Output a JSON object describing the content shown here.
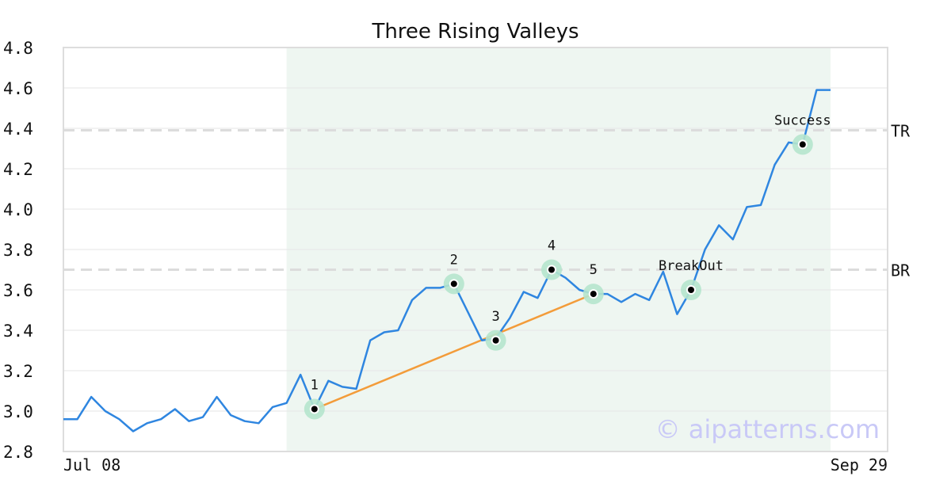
{
  "chart_data": {
    "type": "line",
    "title": "Three Rising Valleys",
    "xlabel": "",
    "ylabel": "",
    "ylim": [
      2.8,
      4.8
    ],
    "yticks": [
      "2.8",
      "3.0",
      "3.2",
      "3.4",
      "3.6",
      "3.8",
      "4.0",
      "4.2",
      "4.4",
      "4.6",
      "4.8"
    ],
    "xtick_labels": [
      "Jul 08",
      "Sep 29"
    ],
    "grid": true,
    "series": [
      {
        "values": [
          2.96,
          2.96,
          3.07,
          3.0,
          2.96,
          2.9,
          2.94,
          2.96,
          3.01,
          2.95,
          2.97,
          3.07,
          2.98,
          2.95,
          2.94,
          3.02,
          3.04,
          3.18,
          3.01,
          3.15,
          3.12,
          3.11,
          3.35,
          3.39,
          3.4,
          3.55,
          3.61,
          3.61,
          3.63,
          3.49,
          3.35,
          3.36,
          3.46,
          3.59,
          3.56,
          3.7,
          3.66,
          3.6,
          3.58,
          3.58,
          3.54,
          3.58,
          3.55,
          3.69,
          3.48,
          3.6,
          3.8,
          3.92,
          3.85,
          4.01,
          4.02,
          4.22,
          4.33,
          4.32,
          4.59,
          4.59
        ],
        "color": "#2f86e0"
      }
    ],
    "shaded_region": {
      "x_start": 16,
      "x_end": 55,
      "color": "#eef6f1"
    },
    "trendline": {
      "points": [
        [
          18,
          3.01
        ],
        [
          38,
          3.58
        ]
      ],
      "color": "#f39c3a"
    },
    "horizontal_lines": [
      {
        "label": "TR",
        "y": 4.39
      },
      {
        "label": "BR",
        "y": 3.7
      }
    ],
    "points": [
      {
        "label": "1",
        "x": 18,
        "y": 3.01
      },
      {
        "label": "2",
        "x": 28,
        "y": 3.63
      },
      {
        "label": "3",
        "x": 31,
        "y": 3.35
      },
      {
        "label": "4",
        "x": 35,
        "y": 3.7
      },
      {
        "label": "5",
        "x": 38,
        "y": 3.58
      },
      {
        "label": "BreakOut",
        "x": 45,
        "y": 3.6
      },
      {
        "label": "Success",
        "x": 53,
        "y": 4.32
      }
    ]
  },
  "watermark": "© aipatterns.com"
}
